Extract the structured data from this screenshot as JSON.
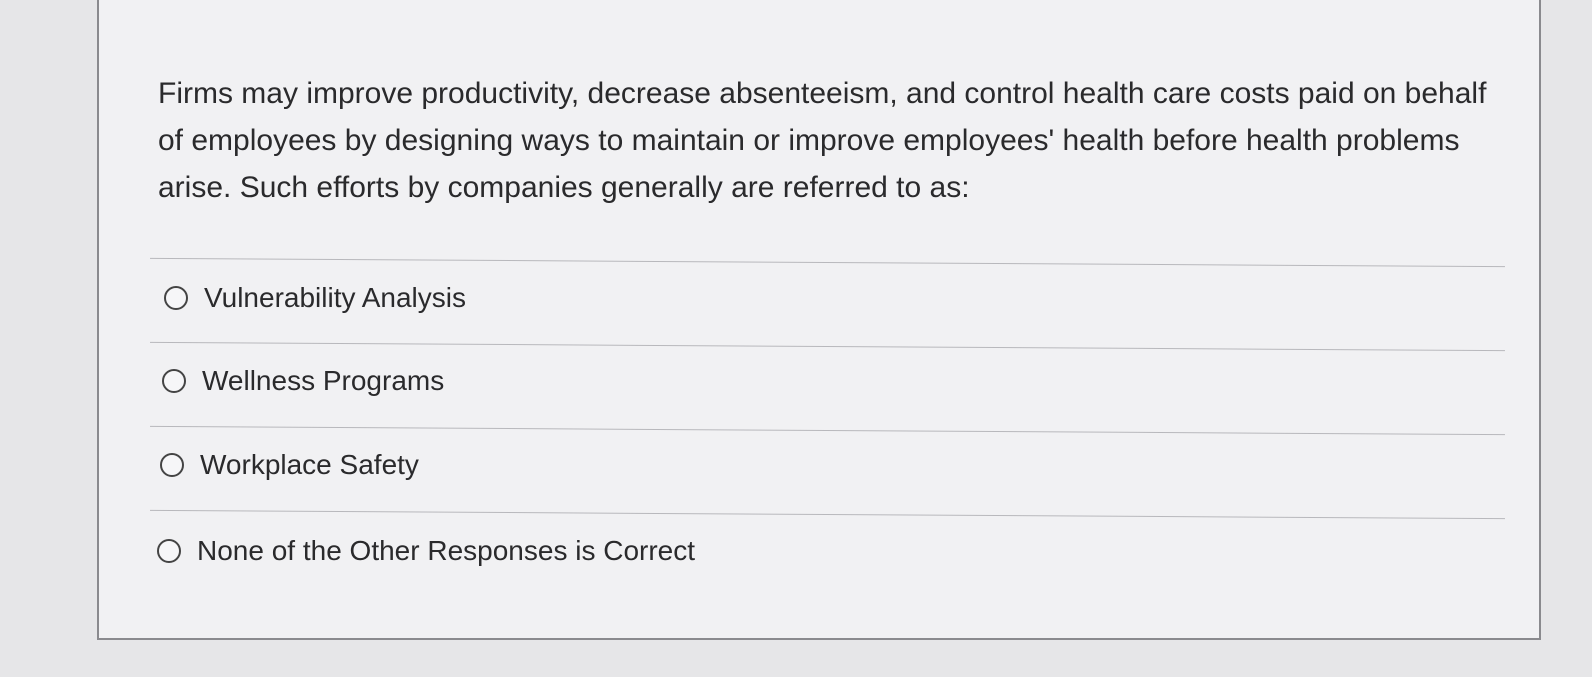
{
  "question": "Firms may improve productivity, decrease absenteeism, and control health care costs paid on behalf of employees by designing ways to maintain or improve employees' health before health problems arise. Such efforts by companies generally are referred to as:",
  "options": [
    {
      "label": "Vulnerability Analysis",
      "selected": false
    },
    {
      "label": "Wellness Programs",
      "selected": false
    },
    {
      "label": "Workplace Safety",
      "selected": false
    },
    {
      "label": "None of the Other Responses is Correct",
      "selected": false
    }
  ]
}
